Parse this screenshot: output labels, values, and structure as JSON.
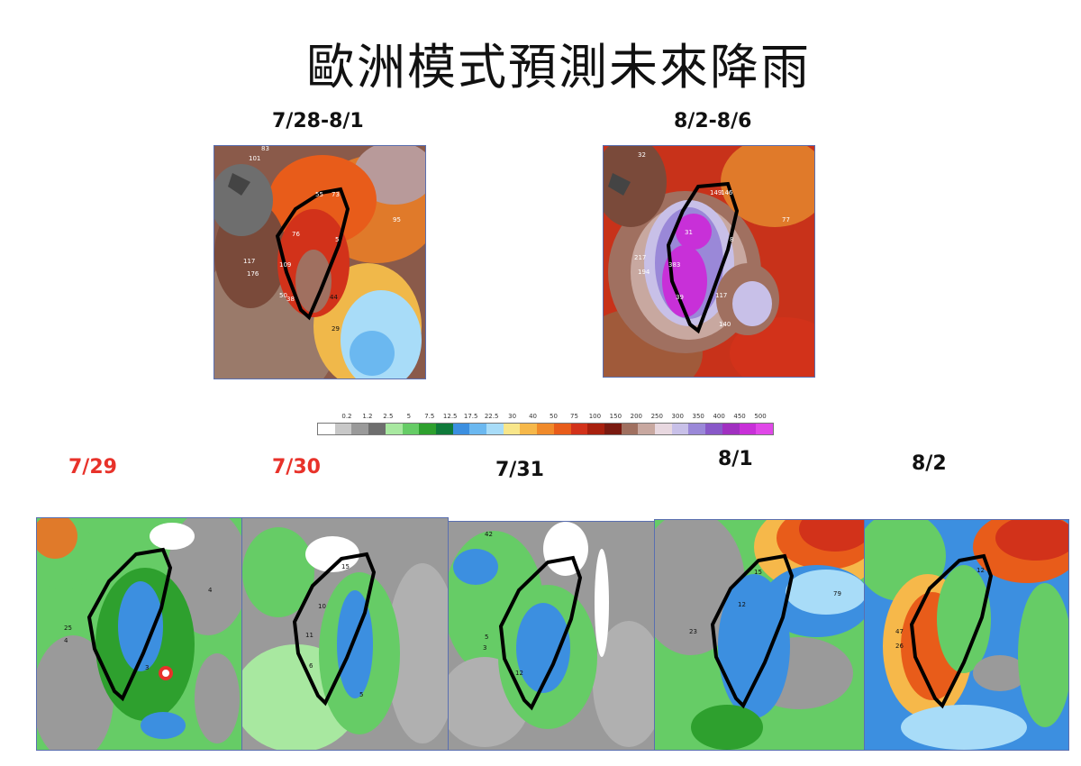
{
  "slide": {
    "title": "歐洲模式預測未來降雨"
  },
  "top_maps": [
    {
      "period": "7/28-8/1",
      "label_color": "#111111",
      "labels": [
        "83",
        "101",
        "55",
        "73",
        "95",
        "76",
        "5",
        "117",
        "176",
        "109",
        "50",
        "38",
        "44",
        "29"
      ]
    },
    {
      "period": "8/2-8/6",
      "label_color": "#111111",
      "labels": [
        "32",
        "149",
        "146",
        "77",
        "31",
        "8",
        "217",
        "194",
        "383",
        "39",
        "117",
        "140"
      ]
    }
  ],
  "daily_maps": [
    {
      "date": "7/29",
      "label_color": "#e8322a"
    },
    {
      "date": "7/30",
      "label_color": "#e8322a"
    },
    {
      "date": "7/31",
      "label_color": "#111111"
    },
    {
      "date": "8/1",
      "label_color": "#111111"
    },
    {
      "date": "8/2",
      "label_color": "#111111"
    }
  ],
  "daily_map_labels": [
    [
      "25",
      "4",
      "4",
      "3"
    ],
    [
      "15",
      "10",
      "11",
      "6",
      "5"
    ],
    [
      "42",
      "5",
      "3",
      "12"
    ],
    [
      "23",
      "15",
      "79",
      "12"
    ],
    [
      "12",
      "47",
      "26"
    ]
  ],
  "legend": {
    "ticks": [
      "0.2",
      "1.2",
      "2.5",
      "5",
      "7.5",
      "12.5",
      "17.5",
      "22.5",
      "30",
      "40",
      "50",
      "75",
      "100",
      "150",
      "200",
      "250",
      "300",
      "350",
      "400",
      "450",
      "500"
    ],
    "colors": [
      "#ffffff",
      "#c8c8c8",
      "#9a9a9a",
      "#6e6e6e",
      "#a8e8a0",
      "#66cc66",
      "#2ea02e",
      "#0f7a3a",
      "#3c8fe0",
      "#6bb8f0",
      "#a8dcf8",
      "#f8e68a",
      "#f6b84a",
      "#f08a2a",
      "#e85c1a",
      "#d2321a",
      "#a8200e",
      "#7a1a10",
      "#a07060",
      "#c8a8a0",
      "#e8d8e0",
      "#c8c0e8",
      "#9a88d8",
      "#8858c8",
      "#a030c0",
      "#c830d8",
      "#e048e8"
    ]
  }
}
